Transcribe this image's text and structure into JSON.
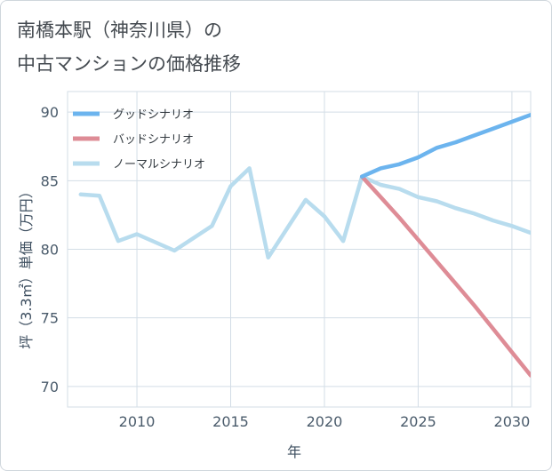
{
  "chart_data": {
    "type": "line",
    "title": [
      "南橋本駅（神奈川県）の",
      "中古マンションの価格推移"
    ],
    "xlabel": "年",
    "ylabel": "坪（3.3㎡）単価（万円）",
    "xlim": [
      2006.3,
      2031
    ],
    "ylim": [
      68.5,
      91.5
    ],
    "x_ticks": [
      2010,
      2015,
      2020,
      2025,
      2030
    ],
    "y_ticks": [
      70,
      75,
      80,
      85,
      90
    ],
    "grid": true,
    "legend_position": "top-left",
    "series": [
      {
        "name": "グッドシナリオ",
        "color": "#6cb4ee",
        "points": [
          [
            2022,
            85.3
          ],
          [
            2023,
            85.9
          ],
          [
            2024,
            86.2
          ],
          [
            2025,
            86.7
          ],
          [
            2026,
            87.4
          ],
          [
            2027,
            87.8
          ],
          [
            2028,
            88.3
          ],
          [
            2029,
            88.8
          ],
          [
            2030,
            89.3
          ],
          [
            2031,
            89.8
          ]
        ]
      },
      {
        "name": "バッドシナリオ",
        "color": "#de8c96",
        "points": [
          [
            2022,
            85.3
          ],
          [
            2023,
            83.8
          ],
          [
            2024,
            82.3
          ],
          [
            2025,
            80.7
          ],
          [
            2026,
            79.1
          ],
          [
            2027,
            77.5
          ],
          [
            2028,
            75.9
          ],
          [
            2029,
            74.2
          ],
          [
            2030,
            72.5
          ],
          [
            2031,
            70.8
          ]
        ]
      },
      {
        "name": "ノーマルシナリオ",
        "color": "#b8dcee",
        "points": [
          [
            2007,
            84.0
          ],
          [
            2008,
            83.9
          ],
          [
            2009,
            80.6
          ],
          [
            2010,
            81.1
          ],
          [
            2012,
            79.9
          ],
          [
            2014,
            81.7
          ],
          [
            2015,
            84.6
          ],
          [
            2016,
            85.9
          ],
          [
            2017,
            79.4
          ],
          [
            2019,
            83.6
          ],
          [
            2020,
            82.4
          ],
          [
            2021,
            80.6
          ],
          [
            2022,
            85.3
          ],
          [
            2023,
            84.7
          ],
          [
            2024,
            84.4
          ],
          [
            2025,
            83.8
          ],
          [
            2026,
            83.5
          ],
          [
            2027,
            83.0
          ],
          [
            2028,
            82.6
          ],
          [
            2029,
            82.1
          ],
          [
            2030,
            81.7
          ],
          [
            2031,
            81.2
          ]
        ]
      }
    ]
  }
}
